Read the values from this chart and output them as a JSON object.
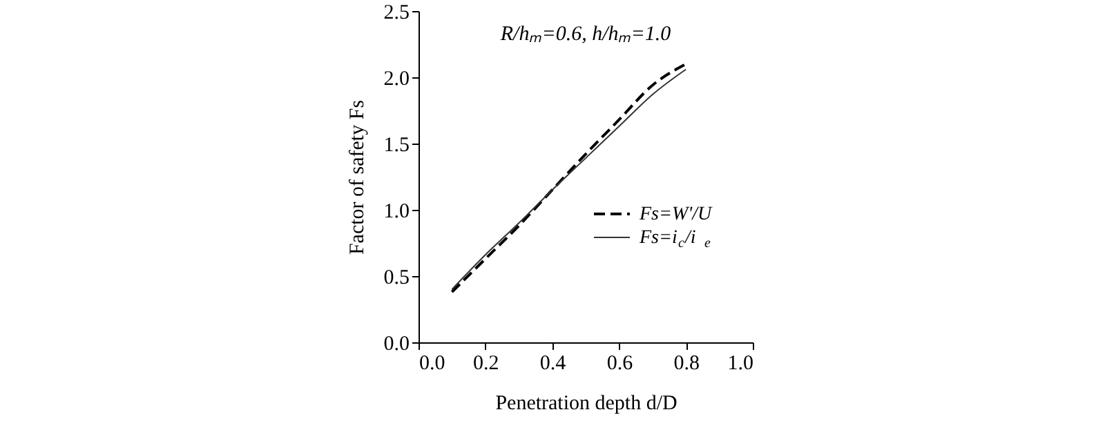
{
  "chart_data": {
    "type": "line",
    "xlabel": "Penetration depth d/D",
    "ylabel": "Factor of safety Fs",
    "annotations": [
      "R/hₘ=0.6,  h/hₘ=1.0"
    ],
    "x": [
      0.1,
      0.2,
      0.3,
      0.4,
      0.5,
      0.6,
      0.7,
      0.8
    ],
    "series": [
      {
        "name": "Fs=W'/U",
        "color": "#000000",
        "line_style": "dashed",
        "values": [
          0.38,
          0.63,
          0.88,
          1.15,
          1.42,
          1.68,
          1.94,
          2.1
        ]
      },
      {
        "name": "Fs=i$_{c}$/i$_{e}$",
        "color": "#333333",
        "line_style": "solid",
        "values": [
          0.4,
          0.66,
          0.9,
          1.15,
          1.39,
          1.63,
          1.87,
          2.06
        ]
      }
    ],
    "xlim": [
      0.0,
      1.0
    ],
    "xticks": [
      {
        "value": 0,
        "label": "0.0"
      },
      0.2,
      0.4,
      0.6,
      0.8,
      {
        "value": 1,
        "label": "1.0"
      }
    ],
    "ylim": [
      0.0,
      2.5
    ],
    "yticks": [
      {
        "value": 0,
        "label": "0.0"
      },
      0.5,
      {
        "value": 1,
        "label": "1.0"
      },
      1.5,
      {
        "value": 2,
        "label": "2.0"
      },
      2.5
    ],
    "grid": false,
    "legend": "right",
    "marker": "none"
  }
}
